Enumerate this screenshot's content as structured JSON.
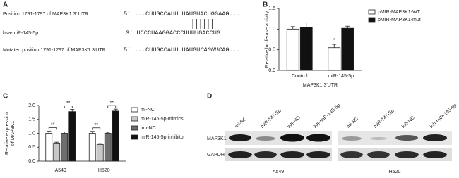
{
  "sequences": {
    "panel": "A",
    "rows": [
      {
        "label": "Position 1791-1797 of MAP3K1 3' UTR",
        "seq": [
          "5' ...CUUGCCAUUUUAUGUACUGGAAG..."
        ]
      },
      {
        "label": "hsa-miR-145-5p",
        "seq": [
          "3' UCCCUAAGGACCCUUUUGACCUG"
        ]
      },
      {
        "label": "Mutated position 1791-1797 of MAP3K1 3'UTR",
        "seq": [
          "5' ...CUUGCCAUUUUAUGU",
          "CAGUUC",
          "AG..."
        ]
      }
    ]
  },
  "chart_data": [
    {
      "type": "bar",
      "panel": "B",
      "categories": [
        "Control",
        "miR-145-5p"
      ],
      "x_label": "MAP3K1 3'UTR",
      "y_label": [
        "Relative luciferase activity"
      ],
      "ylim": [
        0,
        1.5
      ],
      "yticks": [
        {
          "value": 0,
          "label": "0.0"
        },
        {
          "value": 0.5,
          "label": "0.5"
        },
        {
          "value": 1,
          "label": "1.0"
        },
        {
          "value": 1.5,
          "label": "1.5"
        }
      ],
      "series": [
        {
          "name": "pMIR-MAP3K1-WT",
          "color": "#ffffff",
          "values": [
            1.0,
            0.55
          ],
          "errors": [
            0.06,
            0.08
          ]
        },
        {
          "name": "pMIR-MAP3K1-mut",
          "color": "#111111",
          "values": [
            1.05,
            1.02
          ],
          "errors": [
            0.1,
            0.05
          ]
        }
      ],
      "annotation": "*"
    },
    {
      "type": "bar",
      "panel": "C",
      "categories": [
        "A549",
        "H520"
      ],
      "y_label": [
        "Relative expression",
        "of MAP3K1"
      ],
      "ylim": [
        0,
        2
      ],
      "yticks": [
        {
          "value": 0,
          "label": "0.0"
        },
        {
          "value": 0.5,
          "label": "0.5"
        },
        {
          "value": 1,
          "label": "1.0"
        },
        {
          "value": 1.5,
          "label": "1.5"
        },
        {
          "value": 2,
          "label": "2.0"
        }
      ],
      "series": [
        {
          "name": "mi-NC",
          "color": "#ffffff",
          "values": [
            1.0,
            1.0
          ],
          "errors": [
            0.08,
            0.07
          ]
        },
        {
          "name": "miR-145-5p-mimics",
          "color": "#c8c8c8",
          "values": [
            0.65,
            0.6
          ],
          "errors": [
            0.03,
            0.03
          ]
        },
        {
          "name": "inh-NC",
          "color": "#6e6e6e",
          "values": [
            1.0,
            1.0
          ],
          "errors": [
            0.05,
            0.04
          ]
        },
        {
          "name": "miR-145-5p inhibitor",
          "color": "#111111",
          "values": [
            1.78,
            1.8
          ],
          "errors": [
            0.08,
            0.07
          ]
        }
      ],
      "significance": [
        "**",
        "**",
        "**",
        "**"
      ]
    }
  ],
  "western": {
    "panel": "D",
    "proteins": [
      "MAP3K1",
      "GAPDH"
    ],
    "blots": [
      {
        "cell": "A549",
        "lanes": [
          "mi-NC",
          "miR-145-5p",
          "inh-NC",
          "inh-miR-145-5p"
        ]
      },
      {
        "cell": "H520",
        "lanes": [
          "mi-NC",
          "miR-145-5p",
          "inh-NC",
          "inh-miR-145-5p"
        ]
      }
    ]
  }
}
